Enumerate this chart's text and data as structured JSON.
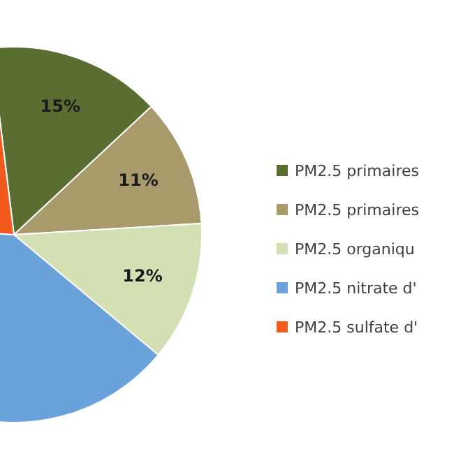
{
  "chart_data": {
    "type": "pie",
    "categories": [
      "PM2.5 primaires",
      "PM2.5 primaires",
      "PM2.5 organiqu",
      "PM2.5 nitrate d'",
      "PM2.5 sulfate d'"
    ],
    "values": [
      15,
      11,
      12,
      40,
      22
    ],
    "value_labels": [
      "15%",
      "11%",
      "12%",
      null,
      null
    ],
    "colors": [
      "#5a6e32",
      "#a89a6a",
      "#d3e0b4",
      "#6aa2dc",
      "#f25a1e"
    ],
    "legend": "right"
  }
}
